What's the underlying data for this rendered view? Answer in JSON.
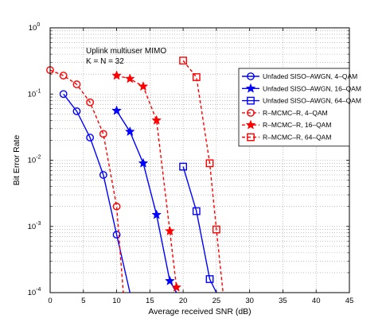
{
  "chart_data": {
    "type": "line",
    "xlabel": "Average received SNR (dB)",
    "ylabel": "Bit Error Rate",
    "xlim": [
      0,
      45
    ],
    "ylim": [
      0.0001,
      1
    ],
    "y_scale": "log",
    "grid": true,
    "legend_position": "top-right",
    "x_ticks": [
      "0",
      "5",
      "10",
      "15",
      "20",
      "25",
      "30",
      "35",
      "40",
      "45"
    ],
    "y_ticks": [
      "10^0",
      "10^-1",
      "10^-2",
      "10^-3",
      "10^-4"
    ],
    "annotations": [
      "Uplink multiuser MIMO",
      "K = N = 32"
    ],
    "series": [
      {
        "name": "Unfaded SISO–AWGN, 4–QAM",
        "color": "#0000ff",
        "line": "solid",
        "marker": "circle",
        "x": [
          2,
          4,
          6,
          8,
          10,
          12
        ],
        "y": [
          0.1,
          0.055,
          0.022,
          0.006,
          0.00075,
          0.0001
        ]
      },
      {
        "name": "Unfaded SISO–AWGN, 16–QAM",
        "color": "#0000ff",
        "line": "solid",
        "marker": "star",
        "x": [
          10,
          12,
          14,
          16,
          18,
          19
        ],
        "y": [
          0.056,
          0.027,
          0.009,
          0.0015,
          0.00015,
          0.0001
        ]
      },
      {
        "name": "Unfaded SISO–AWGN, 64–QAM",
        "color": "#0000ff",
        "line": "solid",
        "marker": "square",
        "x": [
          20,
          22,
          24,
          25
        ],
        "y": [
          0.008,
          0.0017,
          0.00016,
          0.0001
        ]
      },
      {
        "name": "R–MCMC–R, 4–QAM",
        "color": "#ff0000",
        "line": "dashed",
        "marker": "circle",
        "x": [
          0,
          2,
          4,
          6,
          8,
          10,
          11
        ],
        "y": [
          0.23,
          0.19,
          0.14,
          0.075,
          0.025,
          0.002,
          0.0001
        ]
      },
      {
        "name": "R–MCMC–R, 16–QAM",
        "color": "#ff0000",
        "line": "dashed",
        "marker": "star",
        "x": [
          10,
          12,
          14,
          16,
          18,
          19
        ],
        "y": [
          0.19,
          0.17,
          0.13,
          0.04,
          0.00085,
          0.00012
        ]
      },
      {
        "name": "R–MCMC–R, 64–QAM",
        "color": "#ff0000",
        "line": "dashed",
        "marker": "square",
        "x": [
          20,
          22,
          24,
          25,
          26
        ],
        "y": [
          0.32,
          0.18,
          0.009,
          0.0009,
          0.0001
        ]
      }
    ]
  }
}
